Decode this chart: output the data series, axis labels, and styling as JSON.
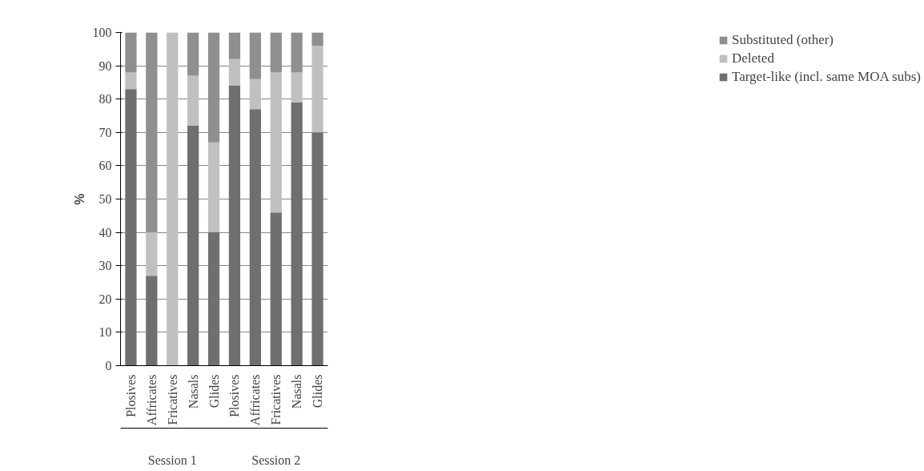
{
  "chart_data": {
    "type": "bar",
    "stacked": true,
    "ylabel": "%",
    "categories": [
      "Plosives",
      "Affricates",
      "Fricatives",
      "Nasals",
      "Glides",
      "Plosives",
      "Affricates",
      "Fricatives",
      "Nasals",
      "Glides"
    ],
    "annotations": [
      "Session 1",
      "Session 2"
    ],
    "series": [
      {
        "name": "Target-like (incl. same MOA subs)",
        "color": "#6f6f6f",
        "values": [
          83,
          27,
          0,
          72,
          40,
          84,
          77,
          46,
          79,
          70
        ]
      },
      {
        "name": "Deleted",
        "color": "#c0c0c0",
        "values": [
          5,
          13,
          100,
          15,
          27,
          8,
          9,
          42,
          9,
          26
        ]
      },
      {
        "name": "Substituted (other)",
        "color": "#8f8f8f",
        "values": [
          12,
          60,
          0,
          13,
          33,
          8,
          14,
          12,
          12,
          4
        ]
      }
    ],
    "ylim": [
      0,
      100
    ],
    "yticks": [
      0,
      10,
      20,
      30,
      40,
      50,
      60,
      70,
      80,
      90,
      100
    ],
    "grid": "y",
    "legend": "right"
  }
}
